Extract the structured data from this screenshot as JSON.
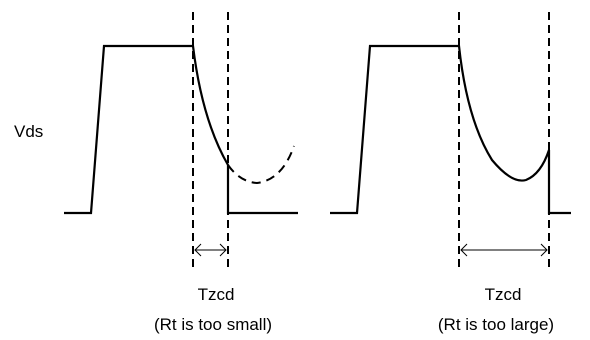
{
  "signal_label": "Vds",
  "left_case": {
    "timing_label": "Tzcd",
    "note": "(Rt is too small)"
  },
  "right_case": {
    "timing_label": "Tzcd",
    "note": "(Rt is too large)"
  },
  "colors": {
    "line": "#000000",
    "background": "#ffffff"
  }
}
